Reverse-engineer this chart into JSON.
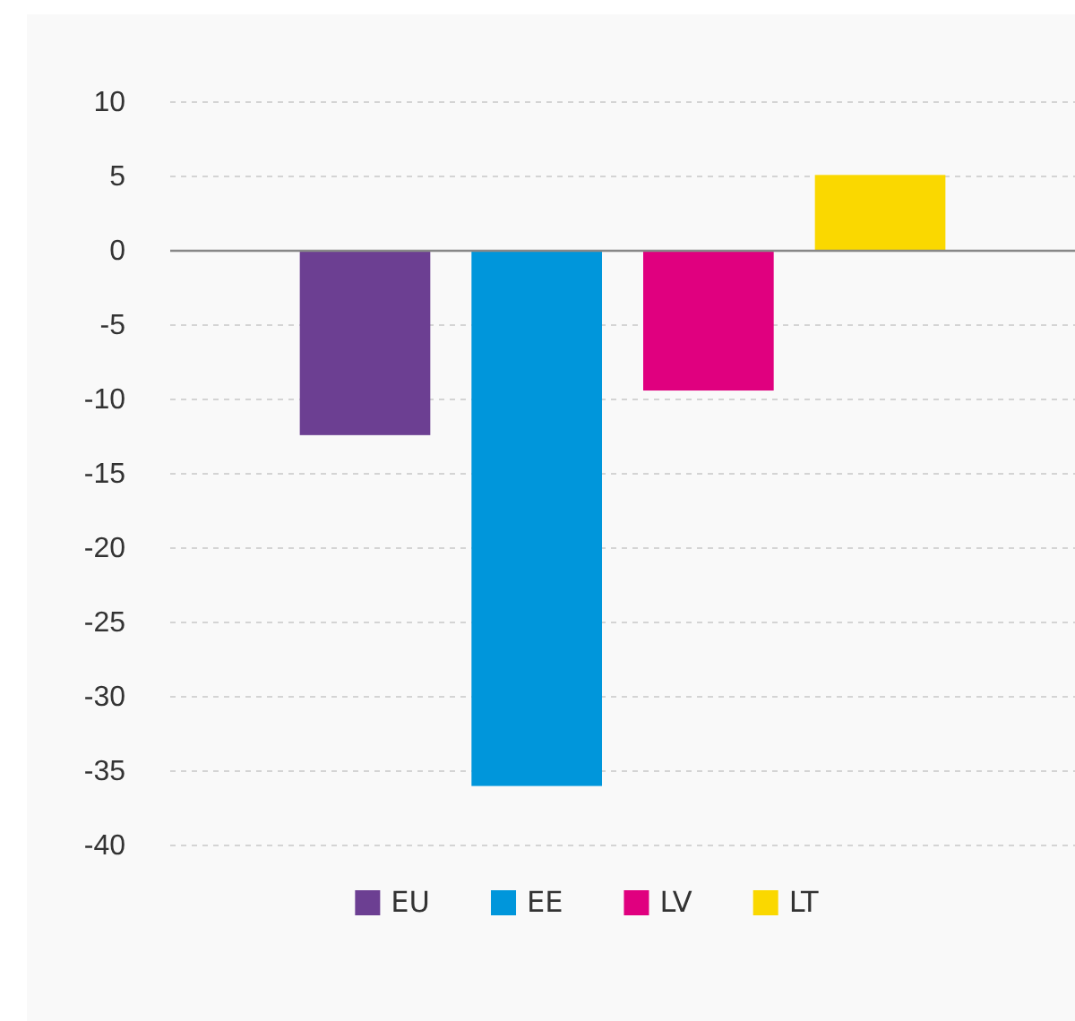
{
  "chart_data": {
    "type": "bar",
    "categories": [
      null
    ],
    "series": [
      {
        "name": "EU",
        "color": "#6c3f92",
        "values": [
          -12.4
        ]
      },
      {
        "name": "EE",
        "color": "#0096db",
        "values": [
          -36.0
        ]
      },
      {
        "name": "LV",
        "color": "#e0007f",
        "values": [
          -9.4
        ]
      },
      {
        "name": "LT",
        "color": "#fad800",
        "values": [
          5.1
        ]
      }
    ],
    "ylim": [
      -40,
      10
    ],
    "yticks": [
      -40,
      -35,
      -30,
      -25,
      -20,
      -15,
      -10,
      -5,
      0,
      5,
      10
    ],
    "grid": "y",
    "legend": "bottom"
  }
}
